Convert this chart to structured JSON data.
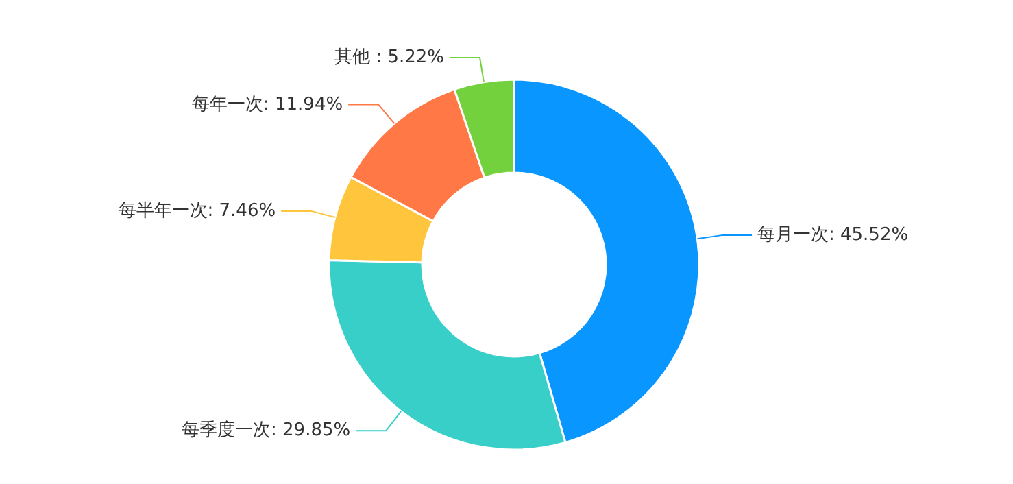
{
  "chart_data": {
    "type": "donut",
    "categories": [
      "每月一次",
      "每季度一次",
      "每半年一次",
      "每年一次",
      "其他 "
    ],
    "values": [
      45.52,
      29.85,
      7.46,
      11.94,
      5.22
    ],
    "colors": [
      "#0a96ff",
      "#38cfc9",
      "#ffc53d",
      "#ff7846",
      "#73d13d"
    ],
    "value_labels": [
      "45.52%",
      "29.85%",
      "7.46%",
      "11.94%",
      "5.22%"
    ]
  }
}
